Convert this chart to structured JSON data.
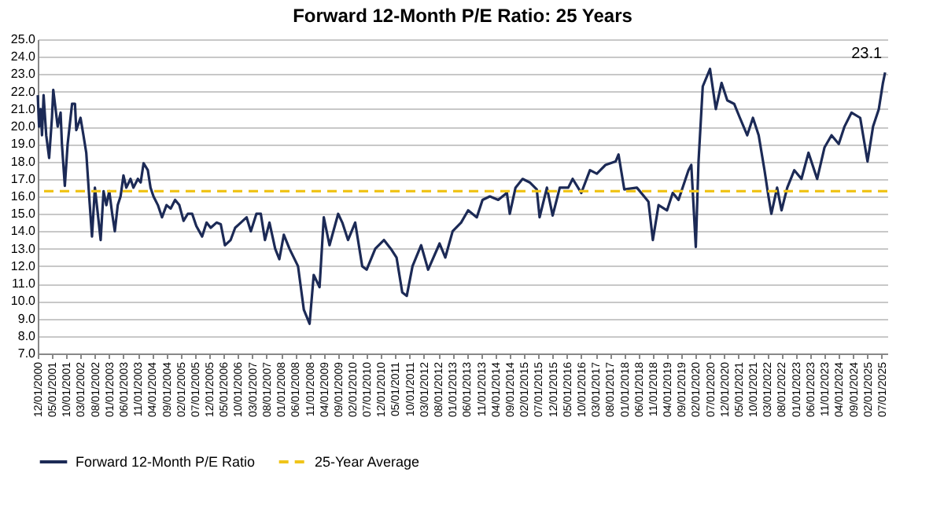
{
  "chart_data": {
    "type": "line",
    "title": "Forward 12-Month P/E Ratio: 25 Years",
    "x": [
      "2000-12-01",
      "2000-12-15",
      "2001-01-01",
      "2001-01-15",
      "2001-02-01",
      "2001-03-01",
      "2001-04-01",
      "2001-05-01",
      "2001-05-15",
      "2001-07-01",
      "2001-08-01",
      "2001-08-15",
      "2001-09-15",
      "2001-10-15",
      "2001-12-01",
      "2002-01-01",
      "2002-01-15",
      "2002-03-01",
      "2002-04-01",
      "2002-05-01",
      "2002-06-01",
      "2002-07-01",
      "2002-08-01",
      "2002-09-01",
      "2002-10-01",
      "2002-11-01",
      "2002-12-01",
      "2003-01-01",
      "2003-02-01",
      "2003-03-01",
      "2003-04-01",
      "2003-05-01",
      "2003-06-01",
      "2003-07-01",
      "2003-08-15",
      "2003-09-15",
      "2003-11-01",
      "2003-12-01",
      "2004-01-01",
      "2004-02-15",
      "2004-03-15",
      "2004-04-15",
      "2004-06-01",
      "2004-07-15",
      "2004-09-01",
      "2004-10-15",
      "2004-12-01",
      "2005-01-15",
      "2005-03-01",
      "2005-04-15",
      "2005-06-01",
      "2005-07-15",
      "2005-09-15",
      "2005-11-01",
      "2005-12-15",
      "2006-02-15",
      "2006-04-01",
      "2006-05-15",
      "2006-07-15",
      "2006-09-01",
      "2006-11-01",
      "2007-01-01",
      "2007-02-15",
      "2007-04-15",
      "2007-06-01",
      "2007-07-15",
      "2007-09-01",
      "2007-11-01",
      "2007-12-15",
      "2008-02-01",
      "2008-04-01",
      "2008-07-01",
      "2008-09-01",
      "2008-11-01",
      "2008-12-15",
      "2009-02-15",
      "2009-04-01",
      "2009-06-01",
      "2009-09-01",
      "2009-10-15",
      "2009-12-15",
      "2010-03-01",
      "2010-05-15",
      "2010-07-01",
      "2010-10-01",
      "2011-01-01",
      "2011-03-15",
      "2011-05-15",
      "2011-07-15",
      "2011-09-01",
      "2011-11-01",
      "2012-02-01",
      "2012-04-15",
      "2012-08-15",
      "2012-10-15",
      "2013-01-01",
      "2013-04-01",
      "2013-06-15",
      "2013-09-15",
      "2013-11-15",
      "2014-02-01",
      "2014-05-01",
      "2014-08-01",
      "2014-09-01",
      "2014-11-01",
      "2015-01-15",
      "2015-04-01",
      "2015-06-15",
      "2015-07-15",
      "2015-10-01",
      "2015-12-01",
      "2016-02-15",
      "2016-05-15",
      "2016-07-01",
      "2016-10-01",
      "2017-01-01",
      "2017-03-15",
      "2017-06-15",
      "2017-10-01",
      "2017-11-01",
      "2018-01-01",
      "2018-05-15",
      "2018-09-15",
      "2018-11-01",
      "2019-01-01",
      "2019-04-01",
      "2019-06-01",
      "2019-08-01",
      "2019-11-15",
      "2019-12-15",
      "2020-02-01",
      "2020-03-01",
      "2020-04-15",
      "2020-07-01",
      "2020-09-01",
      "2020-11-01",
      "2021-01-01",
      "2021-03-15",
      "2021-05-15",
      "2021-08-01",
      "2021-10-01",
      "2021-12-01",
      "2022-02-01",
      "2022-03-15",
      "2022-04-15",
      "2022-06-15",
      "2022-08-01",
      "2022-10-01",
      "2022-12-15",
      "2023-03-01",
      "2023-05-15",
      "2023-08-15",
      "2023-11-01",
      "2024-01-15",
      "2024-04-01",
      "2024-06-01",
      "2024-08-15",
      "2024-11-15",
      "2025-02-01",
      "2025-04-01",
      "2025-06-01",
      "2025-07-15",
      "2025-08-07"
    ],
    "series": [
      {
        "name": "Forward 12-Month P/E Ratio",
        "color": "#1c2a56",
        "values": [
          21.8,
          20.0,
          21.0,
          19.5,
          21.8,
          19.5,
          18.2,
          20.5,
          22.1,
          20.0,
          20.8,
          19.0,
          16.6,
          19.0,
          21.3,
          21.3,
          19.8,
          20.5,
          19.5,
          18.5,
          16.0,
          13.7,
          16.5,
          15.0,
          13.5,
          16.3,
          15.5,
          16.3,
          15.0,
          14.0,
          15.5,
          16.0,
          17.2,
          16.5,
          17.0,
          16.5,
          17.0,
          16.8,
          17.9,
          17.5,
          16.5,
          16.0,
          15.5,
          14.8,
          15.5,
          15.3,
          15.8,
          15.5,
          14.6,
          15.0,
          15.0,
          14.3,
          13.7,
          14.5,
          14.2,
          14.5,
          14.4,
          13.2,
          13.5,
          14.2,
          14.5,
          14.8,
          14.0,
          15.0,
          15.0,
          13.5,
          14.5,
          13.0,
          12.4,
          13.8,
          13.0,
          12.0,
          9.5,
          8.7,
          11.5,
          10.8,
          14.8,
          13.2,
          15.0,
          14.5,
          13.5,
          14.5,
          12.0,
          11.8,
          13.0,
          13.5,
          13.0,
          12.5,
          10.5,
          10.3,
          12.0,
          13.2,
          11.8,
          13.3,
          12.5,
          14.0,
          14.5,
          15.2,
          14.8,
          15.8,
          16.0,
          15.8,
          16.2,
          15.0,
          16.5,
          17.0,
          16.8,
          16.4,
          14.8,
          16.5,
          14.9,
          16.5,
          16.5,
          17.0,
          16.2,
          17.5,
          17.3,
          17.8,
          18.0,
          18.4,
          16.4,
          16.5,
          15.7,
          13.5,
          15.5,
          15.2,
          16.2,
          15.8,
          17.5,
          17.8,
          13.1,
          18.0,
          22.3,
          23.3,
          21.0,
          22.5,
          21.5,
          21.3,
          20.5,
          19.5,
          20.5,
          19.5,
          17.5,
          16.0,
          15.0,
          16.5,
          15.2,
          16.5,
          17.5,
          17.0,
          18.5,
          17.0,
          18.8,
          19.5,
          19.0,
          20.0,
          20.8,
          20.5,
          18.0,
          20.0,
          21.0,
          22.5,
          23.1
        ]
      }
    ],
    "ref_lines": [
      {
        "axis": "y",
        "value": 16.3,
        "label": "25-Year Average",
        "color": "#f0c419",
        "line_style": "dashed"
      }
    ],
    "annotations": [
      {
        "text": "23.1",
        "x": "2025-08-07",
        "y": 23.1
      }
    ],
    "xlim": [
      "2000-12-01",
      "2025-08-31"
    ],
    "xticks": [
      {
        "value": "2000-12-01",
        "label": "12/01/2000"
      },
      {
        "value": "2001-05-01",
        "label": "05/01/2001"
      },
      {
        "value": "2001-10-01",
        "label": "10/01/2001"
      },
      {
        "value": "2002-03-01",
        "label": "03/01/2002"
      },
      {
        "value": "2002-08-01",
        "label": "08/01/2002"
      },
      {
        "value": "2003-01-01",
        "label": "01/01/2003"
      },
      {
        "value": "2003-06-01",
        "label": "06/01/2003"
      },
      {
        "value": "2003-11-01",
        "label": "11/01/2003"
      },
      {
        "value": "2004-04-01",
        "label": "04/01/2004"
      },
      {
        "value": "2004-09-01",
        "label": "09/01/2004"
      },
      {
        "value": "2005-02-01",
        "label": "02/01/2005"
      },
      {
        "value": "2005-07-01",
        "label": "07/01/2005"
      },
      {
        "value": "2005-12-01",
        "label": "12/01/2005"
      },
      {
        "value": "2006-05-01",
        "label": "05/01/2006"
      },
      {
        "value": "2006-10-01",
        "label": "10/01/2006"
      },
      {
        "value": "2007-03-01",
        "label": "03/01/2007"
      },
      {
        "value": "2007-08-01",
        "label": "08/01/2007"
      },
      {
        "value": "2008-01-01",
        "label": "01/01/2008"
      },
      {
        "value": "2008-06-01",
        "label": "06/01/2008"
      },
      {
        "value": "2008-11-01",
        "label": "11/01/2008"
      },
      {
        "value": "2009-04-01",
        "label": "04/01/2009"
      },
      {
        "value": "2009-09-01",
        "label": "09/01/2009"
      },
      {
        "value": "2010-02-01",
        "label": "02/01/2010"
      },
      {
        "value": "2010-07-01",
        "label": "07/01/2010"
      },
      {
        "value": "2010-12-01",
        "label": "12/01/2010"
      },
      {
        "value": "2011-05-01",
        "label": "05/01/2011"
      },
      {
        "value": "2011-10-01",
        "label": "10/01/2011"
      },
      {
        "value": "2012-03-01",
        "label": "03/01/2012"
      },
      {
        "value": "2012-08-01",
        "label": "08/01/2012"
      },
      {
        "value": "2013-01-01",
        "label": "01/01/2013"
      },
      {
        "value": "2013-06-01",
        "label": "06/01/2013"
      },
      {
        "value": "2013-11-01",
        "label": "11/01/2013"
      },
      {
        "value": "2014-04-01",
        "label": "04/01/2014"
      },
      {
        "value": "2014-09-01",
        "label": "09/01/2014"
      },
      {
        "value": "2015-02-01",
        "label": "02/01/2015"
      },
      {
        "value": "2015-07-01",
        "label": "07/01/2015"
      },
      {
        "value": "2015-12-01",
        "label": "12/01/2015"
      },
      {
        "value": "2016-05-01",
        "label": "05/01/2016"
      },
      {
        "value": "2016-10-01",
        "label": "10/01/2016"
      },
      {
        "value": "2017-03-01",
        "label": "03/01/2017"
      },
      {
        "value": "2017-08-01",
        "label": "08/01/2017"
      },
      {
        "value": "2018-01-01",
        "label": "01/01/2018"
      },
      {
        "value": "2018-06-01",
        "label": "06/01/2018"
      },
      {
        "value": "2018-11-01",
        "label": "11/01/2018"
      },
      {
        "value": "2019-04-01",
        "label": "04/01/2019"
      },
      {
        "value": "2019-09-01",
        "label": "09/01/2019"
      },
      {
        "value": "2020-02-01",
        "label": "02/01/2020"
      },
      {
        "value": "2020-07-01",
        "label": "07/01/2020"
      },
      {
        "value": "2020-12-01",
        "label": "12/01/2020"
      },
      {
        "value": "2021-05-01",
        "label": "05/01/2021"
      },
      {
        "value": "2021-10-01",
        "label": "10/01/2021"
      },
      {
        "value": "2022-03-01",
        "label": "03/01/2022"
      },
      {
        "value": "2022-08-01",
        "label": "08/01/2022"
      },
      {
        "value": "2023-01-01",
        "label": "01/01/2023"
      },
      {
        "value": "2023-06-01",
        "label": "06/01/2023"
      },
      {
        "value": "2023-11-01",
        "label": "11/01/2023"
      },
      {
        "value": "2024-04-01",
        "label": "04/01/2024"
      },
      {
        "value": "2024-09-01",
        "label": "09/01/2024"
      },
      {
        "value": "2025-02-01",
        "label": "02/01/2025"
      },
      {
        "value": "2025-07-01",
        "label": "07/01/2025"
      }
    ],
    "ylim": [
      7,
      25
    ],
    "yticks": [
      {
        "value": 7,
        "label": "7.0"
      },
      {
        "value": 8,
        "label": "8.0"
      },
      {
        "value": 9,
        "label": "9.0"
      },
      {
        "value": 10,
        "label": "10.0"
      },
      {
        "value": 11,
        "label": "11.0"
      },
      {
        "value": 12,
        "label": "12.0"
      },
      {
        "value": 13,
        "label": "13.0"
      },
      {
        "value": 14,
        "label": "14.0"
      },
      {
        "value": 15,
        "label": "15.0"
      },
      {
        "value": 16,
        "label": "16.0"
      },
      {
        "value": 17,
        "label": "17.0"
      },
      {
        "value": 18,
        "label": "18.0"
      },
      {
        "value": 19,
        "label": "19.0"
      },
      {
        "value": 20,
        "label": "20.0"
      },
      {
        "value": 21,
        "label": "21.0"
      },
      {
        "value": 22,
        "label": "22.0"
      },
      {
        "value": 23,
        "label": "23.0"
      },
      {
        "value": 24,
        "label": "24.0"
      },
      {
        "value": 25,
        "label": "25.0"
      }
    ],
    "grid": "y",
    "legend": "bottom",
    "marker": "none",
    "line_style": "solid"
  }
}
